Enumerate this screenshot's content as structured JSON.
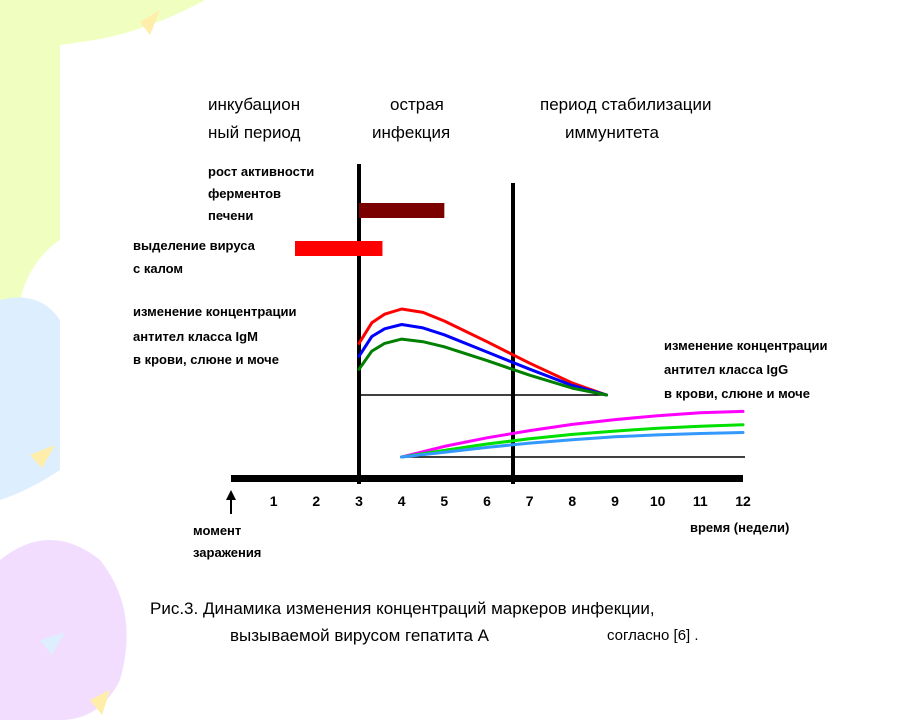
{
  "chart_data": {
    "type": "line",
    "xlabel": "время (недели)",
    "xlim": [
      0,
      12
    ],
    "x_ticks": [
      "1",
      "2",
      "3",
      "4",
      "5",
      "6",
      "7",
      "8",
      "9",
      "10",
      "11",
      "12"
    ],
    "origin_label": [
      "момент",
      "заражения"
    ],
    "periods": [
      {
        "lines": [
          "инкубацион",
          "ный период"
        ]
      },
      {
        "lines": [
          "острая",
          "инфекция"
        ]
      },
      {
        "lines": [
          "период стабилизации",
          "иммунитета"
        ]
      }
    ],
    "dividers_weeks": [
      3,
      6.6
    ],
    "bars": [
      {
        "label_lines": [
          "рост активности",
          "ферментов",
          "печени"
        ],
        "start": 3,
        "end": 5,
        "color": "#7b0000"
      },
      {
        "label_lines": [
          "выделение вируса",
          "с калом"
        ],
        "start": 1.5,
        "end": 3.55,
        "color": "#ff0000"
      }
    ],
    "igm": {
      "label_lines": [
        "изменение концентрации",
        "антител класса IgM",
        "в крови, слюне и моче"
      ],
      "series": [
        {
          "color": "#ff0000",
          "x": [
            3,
            3.3,
            3.6,
            4,
            4.5,
            5,
            6,
            7,
            8,
            8.8
          ],
          "y": [
            0.6,
            0.84,
            0.94,
            1.0,
            0.96,
            0.86,
            0.62,
            0.37,
            0.14,
            0
          ]
        },
        {
          "color": "#0000ff",
          "x": [
            3,
            3.3,
            3.6,
            4,
            4.5,
            5,
            6,
            7,
            8,
            8.8
          ],
          "y": [
            0.45,
            0.68,
            0.77,
            0.82,
            0.78,
            0.7,
            0.5,
            0.3,
            0.11,
            0
          ]
        },
        {
          "color": "#008000",
          "x": [
            3,
            3.3,
            3.6,
            4,
            4.5,
            5,
            6,
            7,
            8,
            8.8
          ],
          "y": [
            0.3,
            0.51,
            0.6,
            0.65,
            0.62,
            0.56,
            0.4,
            0.23,
            0.08,
            0
          ]
        }
      ]
    },
    "igg": {
      "label_lines": [
        "изменение концентрации",
        "антител класса IgG",
        "в крови, слюне и моче"
      ],
      "series": [
        {
          "color": "#ff00ff",
          "x": [
            4,
            5,
            6,
            7,
            8,
            9,
            10,
            11,
            12
          ],
          "y": [
            0,
            0.22,
            0.4,
            0.55,
            0.68,
            0.78,
            0.86,
            0.92,
            0.95
          ]
        },
        {
          "color": "#00e000",
          "x": [
            4,
            5,
            6,
            7,
            8,
            9,
            10,
            11,
            12
          ],
          "y": [
            0,
            0.14,
            0.27,
            0.38,
            0.47,
            0.54,
            0.6,
            0.64,
            0.67
          ]
        },
        {
          "color": "#3399ff",
          "x": [
            4,
            5,
            6,
            7,
            8,
            9,
            10,
            11,
            12
          ],
          "y": [
            0,
            0.1,
            0.2,
            0.29,
            0.36,
            0.42,
            0.46,
            0.49,
            0.51
          ]
        }
      ]
    }
  },
  "caption": {
    "line1": "Рис.3. Динамика изменения концентраций маркеров инфекции,",
    "line2": "вызываемой вирусом гепатита А",
    "line2_ref": "согласно [6] ."
  },
  "decor_colors": [
    "#f0ffc0",
    "#ddeeff",
    "#f2ddff",
    "#ffeeaa"
  ]
}
